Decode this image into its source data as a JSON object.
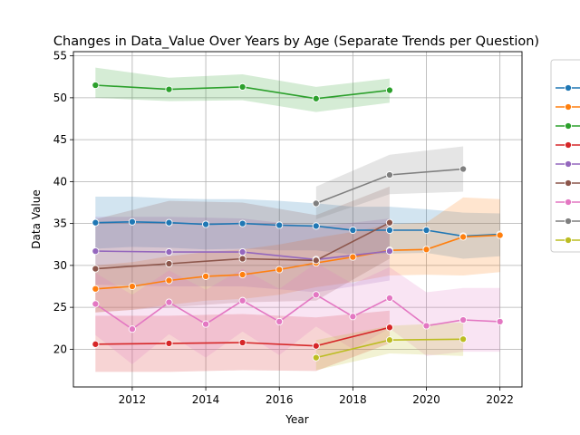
{
  "chart_data": {
    "type": "line",
    "title": "Changes in Data_Value Over Years by Age (Separate Trends per Question)",
    "xlabel": "Year",
    "ylabel": "Data Value",
    "xlim": [
      2010.4,
      2022.6
    ],
    "ylim": [
      15.5,
      55.5
    ],
    "xticks": [
      2012,
      2014,
      2016,
      2018,
      2020,
      2022
    ],
    "yticks": [
      20,
      25,
      30,
      35,
      40,
      45,
      50,
      55
    ],
    "grid": true,
    "legend": "outside-right (entries unlabeled)",
    "series": [
      {
        "color": "#1f77b4",
        "points": [
          [
            2011,
            35.1
          ],
          [
            2012,
            35.2
          ],
          [
            2013,
            35.1
          ],
          [
            2014,
            34.9
          ],
          [
            2015,
            35.0
          ],
          [
            2016,
            34.8
          ],
          [
            2017,
            34.7
          ],
          [
            2018,
            34.2
          ],
          [
            2019,
            34.2
          ],
          [
            2020,
            34.2
          ],
          [
            2021,
            33.5
          ],
          [
            2022,
            33.7
          ]
        ],
        "band": [
          [
            2011,
            32.0,
            38.2
          ],
          [
            2012,
            32.2,
            38.2
          ],
          [
            2013,
            32.1,
            38.0
          ],
          [
            2014,
            31.9,
            37.9
          ],
          [
            2015,
            32.0,
            37.9
          ],
          [
            2016,
            31.8,
            37.7
          ],
          [
            2017,
            31.8,
            37.4
          ],
          [
            2018,
            31.3,
            37.0
          ],
          [
            2019,
            31.4,
            37.0
          ],
          [
            2020,
            31.5,
            36.7
          ],
          [
            2021,
            30.8,
            36.3
          ],
          [
            2022,
            31.1,
            36.2
          ]
        ]
      },
      {
        "color": "#ff7f0e",
        "points": [
          [
            2011,
            27.2
          ],
          [
            2012,
            27.5
          ],
          [
            2013,
            28.2
          ],
          [
            2014,
            28.7
          ],
          [
            2015,
            28.9
          ],
          [
            2016,
            29.5
          ],
          [
            2017,
            30.3
          ],
          [
            2018,
            31.0
          ],
          [
            2019,
            31.8
          ],
          [
            2020,
            31.9
          ],
          [
            2021,
            33.4
          ],
          [
            2022,
            33.6
          ]
        ],
        "band": [
          [
            2011,
            24.4,
            30.0
          ],
          [
            2012,
            24.7,
            30.4
          ],
          [
            2013,
            25.3,
            31.1
          ],
          [
            2014,
            25.8,
            31.6
          ],
          [
            2015,
            26.0,
            31.9
          ],
          [
            2016,
            26.5,
            32.5
          ],
          [
            2017,
            27.4,
            33.3
          ],
          [
            2018,
            28.0,
            34.0
          ],
          [
            2019,
            28.8,
            34.9
          ],
          [
            2020,
            28.9,
            35.1
          ],
          [
            2021,
            28.8,
            38.1
          ],
          [
            2022,
            29.2,
            37.9
          ]
        ]
      },
      {
        "color": "#2ca02c",
        "points": [
          [
            2011,
            51.5
          ],
          [
            2013,
            51.0
          ],
          [
            2015,
            51.3
          ],
          [
            2017,
            49.9
          ],
          [
            2019,
            50.9
          ]
        ],
        "band": [
          [
            2011,
            50.0,
            53.6
          ],
          [
            2013,
            49.6,
            52.4
          ],
          [
            2015,
            49.7,
            52.8
          ],
          [
            2017,
            48.3,
            51.3
          ],
          [
            2019,
            49.4,
            52.3
          ]
        ]
      },
      {
        "color": "#d62728",
        "points": [
          [
            2011,
            20.6
          ],
          [
            2013,
            20.7
          ],
          [
            2015,
            20.8
          ],
          [
            2017,
            20.4
          ],
          [
            2019,
            22.6
          ]
        ],
        "band": [
          [
            2011,
            17.3,
            24.0
          ],
          [
            2013,
            17.3,
            24.0
          ],
          [
            2015,
            17.5,
            24.2
          ],
          [
            2017,
            17.4,
            23.8
          ],
          [
            2019,
            20.7,
            24.6
          ]
        ]
      },
      {
        "color": "#9467bd",
        "points": [
          [
            2011,
            31.7
          ],
          [
            2013,
            31.6
          ],
          [
            2015,
            31.6
          ],
          [
            2017,
            30.7
          ],
          [
            2019,
            31.7
          ]
        ],
        "band": [
          [
            2011,
            27.7,
            35.8
          ],
          [
            2013,
            27.5,
            35.8
          ],
          [
            2015,
            27.5,
            35.6
          ],
          [
            2017,
            26.8,
            34.6
          ],
          [
            2019,
            28.2,
            35.6
          ]
        ]
      },
      {
        "color": "#8c564b",
        "points": [
          [
            2011,
            29.6
          ],
          [
            2013,
            30.2
          ],
          [
            2015,
            30.8
          ],
          [
            2017,
            30.6
          ],
          [
            2019,
            35.1
          ]
        ],
        "band": [
          [
            2011,
            24.4,
            35.5
          ],
          [
            2013,
            25.0,
            37.7
          ],
          [
            2015,
            25.6,
            37.5
          ],
          [
            2017,
            25.8,
            36.0
          ],
          [
            2019,
            30.8,
            39.4
          ]
        ]
      },
      {
        "color": "#e377c2",
        "points": [
          [
            2011,
            25.4
          ],
          [
            2012,
            22.4
          ],
          [
            2013,
            25.6
          ],
          [
            2014,
            23.0
          ],
          [
            2015,
            25.8
          ],
          [
            2016,
            23.3
          ],
          [
            2017,
            26.5
          ],
          [
            2018,
            23.9
          ],
          [
            2019,
            26.1
          ],
          [
            2020,
            22.8
          ],
          [
            2021,
            23.5
          ],
          [
            2022,
            23.3
          ]
        ],
        "band": [
          [
            2011,
            21.7,
            29.1
          ],
          [
            2012,
            18.2,
            26.5
          ],
          [
            2013,
            21.8,
            29.4
          ],
          [
            2014,
            19.0,
            27.1
          ],
          [
            2015,
            22.1,
            29.6
          ],
          [
            2016,
            19.3,
            27.2
          ],
          [
            2017,
            22.7,
            30.3
          ],
          [
            2018,
            20.0,
            27.8
          ],
          [
            2019,
            22.5,
            29.8
          ],
          [
            2020,
            19.2,
            26.8
          ],
          [
            2021,
            19.7,
            27.3
          ],
          [
            2022,
            19.7,
            27.3
          ]
        ]
      },
      {
        "color": "#7f7f7f",
        "points": [
          [
            2017,
            37.4
          ],
          [
            2019,
            40.8
          ],
          [
            2021,
            41.5
          ]
        ],
        "band": [
          [
            2017,
            35.5,
            39.4
          ],
          [
            2019,
            38.5,
            43.2
          ],
          [
            2021,
            38.8,
            44.2
          ]
        ]
      },
      {
        "color": "#bcbd22",
        "points": [
          [
            2017,
            19.0
          ],
          [
            2019,
            21.1
          ],
          [
            2021,
            21.2
          ]
        ],
        "band": [
          [
            2017,
            17.5,
            21.1
          ],
          [
            2019,
            19.5,
            22.8
          ],
          [
            2021,
            19.2,
            23.2
          ]
        ]
      }
    ]
  }
}
